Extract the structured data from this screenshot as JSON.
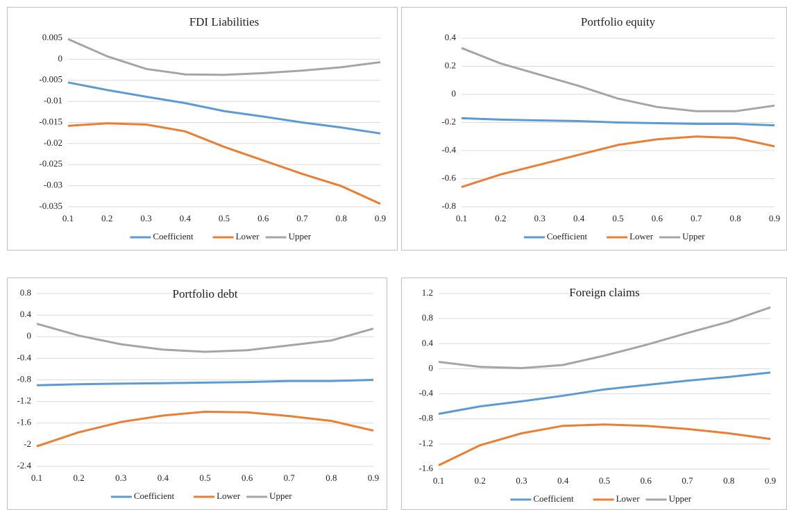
{
  "chart_data": [
    {
      "type": "line",
      "title": "FDI Liabilities",
      "x": [
        0.1,
        0.2,
        0.3,
        0.4,
        0.5,
        0.6,
        0.7,
        0.8,
        0.9
      ],
      "xlim": [
        0.1,
        0.9
      ],
      "xticks": [
        0.1,
        0.2,
        0.3,
        0.4,
        0.5,
        0.6,
        0.7,
        0.8,
        0.9
      ],
      "ylim": [
        -0.035,
        0.005
      ],
      "yticks": [
        0.005,
        0,
        -0.005,
        -0.01,
        -0.015,
        -0.02,
        -0.025,
        -0.03,
        -0.035
      ],
      "grid": true,
      "legend": "bottom",
      "series": [
        {
          "name": "Coefficient",
          "color": "#5b9bd5",
          "values": [
            -0.0055,
            -0.0073,
            -0.0089,
            -0.0104,
            -0.0123,
            -0.0136,
            -0.015,
            -0.0162,
            -0.0176
          ]
        },
        {
          "name": "Lower",
          "color": "#ed7d31",
          "values": [
            -0.0158,
            -0.0152,
            -0.0155,
            -0.0171,
            -0.0208,
            -0.024,
            -0.0272,
            -0.0301,
            -0.0343
          ]
        },
        {
          "name": "Upper",
          "color": "#a5a5a5",
          "values": [
            0.0048,
            0.0007,
            -0.0023,
            -0.0036,
            -0.0037,
            -0.0033,
            -0.0027,
            -0.0019,
            -0.0007
          ]
        }
      ]
    },
    {
      "type": "line",
      "title": "Portfolio equity",
      "x": [
        0.1,
        0.2,
        0.3,
        0.4,
        0.5,
        0.6,
        0.7,
        0.8,
        0.9
      ],
      "xlim": [
        0.1,
        0.9
      ],
      "xticks": [
        0.1,
        0.2,
        0.3,
        0.4,
        0.5,
        0.6,
        0.7,
        0.8,
        0.9
      ],
      "ylim": [
        -0.8,
        0.4
      ],
      "yticks": [
        0.4,
        0.2,
        0,
        -0.2,
        -0.4,
        -0.6,
        -0.8
      ],
      "grid": true,
      "legend": "bottom",
      "series": [
        {
          "name": "Coefficient",
          "color": "#5b9bd5",
          "values": [
            -0.17,
            -0.18,
            -0.185,
            -0.19,
            -0.2,
            -0.205,
            -0.21,
            -0.21,
            -0.22
          ]
        },
        {
          "name": "Lower",
          "color": "#ed7d31",
          "values": [
            -0.66,
            -0.57,
            -0.5,
            -0.43,
            -0.36,
            -0.32,
            -0.3,
            -0.31,
            -0.37
          ]
        },
        {
          "name": "Upper",
          "color": "#a5a5a5",
          "values": [
            0.33,
            0.22,
            0.14,
            0.06,
            -0.03,
            -0.09,
            -0.12,
            -0.12,
            -0.08
          ]
        }
      ]
    },
    {
      "type": "line",
      "title": "Portfolio debt",
      "x": [
        0.1,
        0.2,
        0.3,
        0.4,
        0.5,
        0.6,
        0.7,
        0.8,
        0.9
      ],
      "xlim": [
        0.1,
        0.9
      ],
      "xticks": [
        0.1,
        0.2,
        0.3,
        0.4,
        0.5,
        0.6,
        0.7,
        0.8,
        0.9
      ],
      "ylim": [
        -2.4,
        0.8
      ],
      "yticks": [
        0.8,
        0.4,
        0,
        -0.4,
        -0.8,
        -1.2,
        -1.6,
        -2,
        -2.4
      ],
      "grid": true,
      "legend": "bottom",
      "series": [
        {
          "name": "Coefficient",
          "color": "#5b9bd5",
          "values": [
            -0.9,
            -0.88,
            -0.87,
            -0.86,
            -0.85,
            -0.84,
            -0.82,
            -0.82,
            -0.8
          ]
        },
        {
          "name": "Lower",
          "color": "#ed7d31",
          "values": [
            -2.03,
            -1.77,
            -1.58,
            -1.46,
            -1.39,
            -1.4,
            -1.47,
            -1.56,
            -1.74
          ]
        },
        {
          "name": "Upper",
          "color": "#a5a5a5",
          "values": [
            0.24,
            0.02,
            -0.14,
            -0.24,
            -0.28,
            -0.25,
            -0.16,
            -0.07,
            0.15
          ]
        }
      ]
    },
    {
      "type": "line",
      "title": "Foreign claims",
      "x": [
        0.1,
        0.2,
        0.3,
        0.4,
        0.5,
        0.6,
        0.7,
        0.8,
        0.9
      ],
      "xlim": [
        0.1,
        0.9
      ],
      "xticks": [
        0.1,
        0.2,
        0.3,
        0.4,
        0.5,
        0.6,
        0.7,
        0.8,
        0.9
      ],
      "ylim": [
        -1.6,
        1.2
      ],
      "yticks": [
        1.2,
        0.8,
        0.4,
        0,
        -0.4,
        -0.8,
        -1.2,
        -1.6
      ],
      "grid": true,
      "legend": "bottom",
      "series": [
        {
          "name": "Coefficient",
          "color": "#5b9bd5",
          "values": [
            -0.72,
            -0.6,
            -0.52,
            -0.43,
            -0.33,
            -0.26,
            -0.19,
            -0.13,
            -0.06
          ]
        },
        {
          "name": "Lower",
          "color": "#ed7d31",
          "values": [
            -1.54,
            -1.22,
            -1.03,
            -0.91,
            -0.89,
            -0.91,
            -0.96,
            -1.03,
            -1.12
          ]
        },
        {
          "name": "Upper",
          "color": "#a5a5a5",
          "values": [
            0.11,
            0.03,
            0.01,
            0.06,
            0.21,
            0.38,
            0.57,
            0.75,
            0.98
          ]
        }
      ]
    }
  ]
}
